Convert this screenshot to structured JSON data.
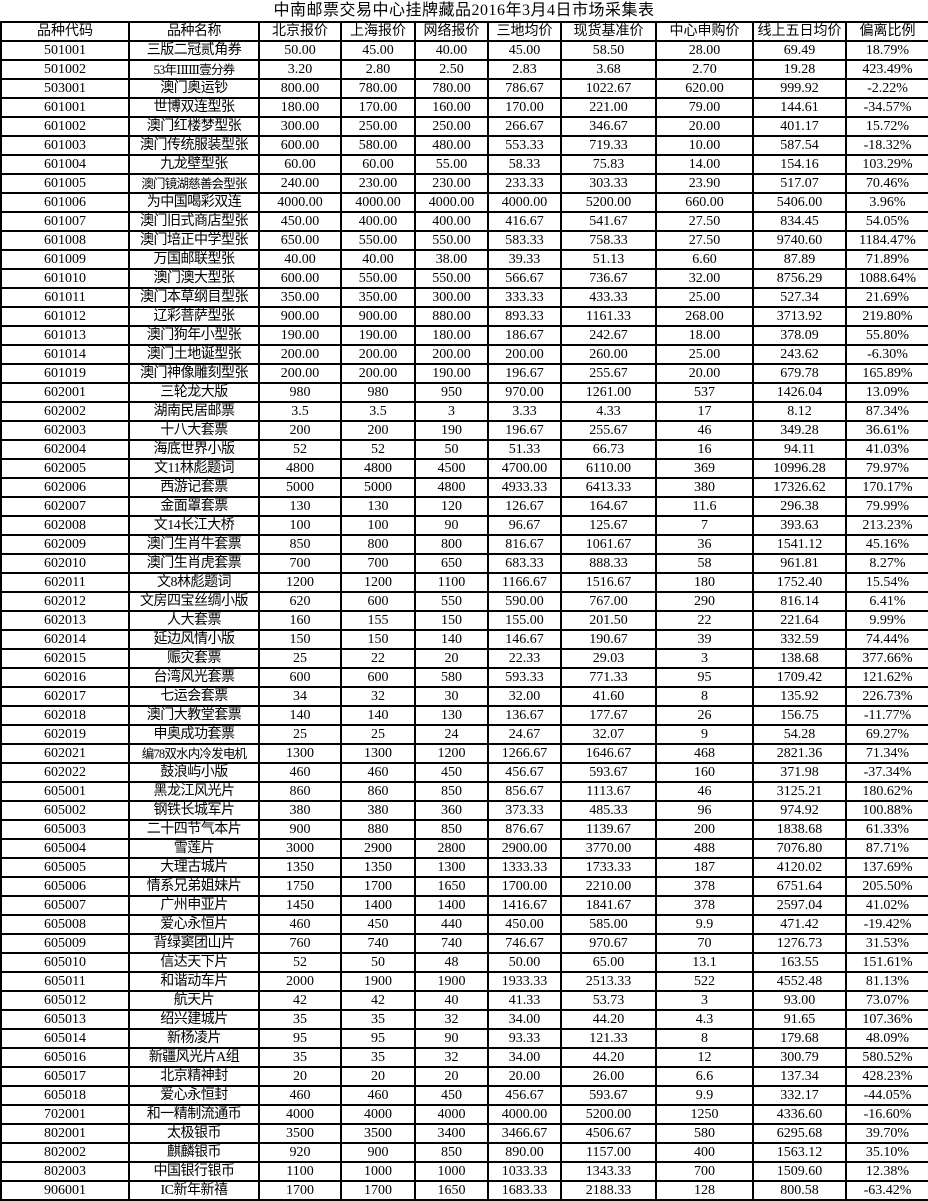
{
  "title": "中南邮票交易中心挂牌藏品2016年3月4日市场采集表",
  "table": {
    "columns": [
      "品种代码",
      "品种名称",
      "北京报价",
      "上海报价",
      "网络报价",
      "三地均价",
      "现货基准价",
      "中心申购价",
      "线上五日均价",
      "偏离比例"
    ],
    "rows": [
      [
        "501001",
        "三版二冠贰角券",
        "50.00",
        "45.00",
        "40.00",
        "45.00",
        "58.50",
        "28.00",
        "69.49",
        "18.79%"
      ],
      [
        "501002",
        "53年ⅠⅡⅢ壹分券",
        "3.20",
        "2.80",
        "2.50",
        "2.83",
        "3.68",
        "2.70",
        "19.28",
        "423.49%"
      ],
      [
        "503001",
        "澳门奥运钞",
        "800.00",
        "780.00",
        "780.00",
        "786.67",
        "1022.67",
        "620.00",
        "999.92",
        "-2.22%"
      ],
      [
        "601001",
        "世博双连型张",
        "180.00",
        "170.00",
        "160.00",
        "170.00",
        "221.00",
        "79.00",
        "144.61",
        "-34.57%"
      ],
      [
        "601002",
        "澳门红楼梦型张",
        "300.00",
        "250.00",
        "250.00",
        "266.67",
        "346.67",
        "20.00",
        "401.17",
        "15.72%"
      ],
      [
        "601003",
        "澳门传统服装型张",
        "600.00",
        "580.00",
        "480.00",
        "553.33",
        "719.33",
        "10.00",
        "587.54",
        "-18.32%"
      ],
      [
        "601004",
        "九龙壁型张",
        "60.00",
        "60.00",
        "55.00",
        "58.33",
        "75.83",
        "14.00",
        "154.16",
        "103.29%"
      ],
      [
        "601005",
        "澳门镜湖慈善会型张",
        "240.00",
        "230.00",
        "230.00",
        "233.33",
        "303.33",
        "23.90",
        "517.07",
        "70.46%"
      ],
      [
        "601006",
        "为中国喝彩双连",
        "4000.00",
        "4000.00",
        "4000.00",
        "4000.00",
        "5200.00",
        "660.00",
        "5406.00",
        "3.96%"
      ],
      [
        "601007",
        "澳门旧式商店型张",
        "450.00",
        "400.00",
        "400.00",
        "416.67",
        "541.67",
        "27.50",
        "834.45",
        "54.05%"
      ],
      [
        "601008",
        "澳门培正中学型张",
        "650.00",
        "550.00",
        "550.00",
        "583.33",
        "758.33",
        "27.50",
        "9740.60",
        "1184.47%"
      ],
      [
        "601009",
        "万国邮联型张",
        "40.00",
        "40.00",
        "38.00",
        "39.33",
        "51.13",
        "6.60",
        "87.89",
        "71.89%"
      ],
      [
        "601010",
        "澳门澳大型张",
        "600.00",
        "550.00",
        "550.00",
        "566.67",
        "736.67",
        "32.00",
        "8756.29",
        "1088.64%"
      ],
      [
        "601011",
        "澳门本草纲目型张",
        "350.00",
        "350.00",
        "300.00",
        "333.33",
        "433.33",
        "25.00",
        "527.34",
        "21.69%"
      ],
      [
        "601012",
        "辽彩菩萨型张",
        "900.00",
        "900.00",
        "880.00",
        "893.33",
        "1161.33",
        "268.00",
        "3713.92",
        "219.80%"
      ],
      [
        "601013",
        "澳门狗年小型张",
        "190.00",
        "190.00",
        "180.00",
        "186.67",
        "242.67",
        "18.00",
        "378.09",
        "55.80%"
      ],
      [
        "601014",
        "澳门土地诞型张",
        "200.00",
        "200.00",
        "200.00",
        "200.00",
        "260.00",
        "25.00",
        "243.62",
        "-6.30%"
      ],
      [
        "601019",
        "澳门神像雕刻型张",
        "200.00",
        "200.00",
        "190.00",
        "196.67",
        "255.67",
        "20.00",
        "679.78",
        "165.89%"
      ],
      [
        "602001",
        "三轮龙大版",
        "980",
        "980",
        "950",
        "970.00",
        "1261.00",
        "537",
        "1426.04",
        "13.09%"
      ],
      [
        "602002",
        "湖南民居邮票",
        "3.5",
        "3.5",
        "3",
        "3.33",
        "4.33",
        "17",
        "8.12",
        "87.34%"
      ],
      [
        "602003",
        "十八大套票",
        "200",
        "200",
        "190",
        "196.67",
        "255.67",
        "46",
        "349.28",
        "36.61%"
      ],
      [
        "602004",
        "海底世界小版",
        "52",
        "52",
        "50",
        "51.33",
        "66.73",
        "16",
        "94.11",
        "41.03%"
      ],
      [
        "602005",
        "文11林彪题词",
        "4800",
        "4800",
        "4500",
        "4700.00",
        "6110.00",
        "369",
        "10996.28",
        "79.97%"
      ],
      [
        "602006",
        "西游记套票",
        "5000",
        "5000",
        "4800",
        "4933.33",
        "6413.33",
        "380",
        "17326.62",
        "170.17%"
      ],
      [
        "602007",
        "金面罩套票",
        "130",
        "130",
        "120",
        "126.67",
        "164.67",
        "11.6",
        "296.38",
        "79.99%"
      ],
      [
        "602008",
        "文14长江大桥",
        "100",
        "100",
        "90",
        "96.67",
        "125.67",
        "7",
        "393.63",
        "213.23%"
      ],
      [
        "602009",
        "澳门生肖牛套票",
        "850",
        "800",
        "800",
        "816.67",
        "1061.67",
        "36",
        "1541.12",
        "45.16%"
      ],
      [
        "602010",
        "澳门生肖虎套票",
        "700",
        "700",
        "650",
        "683.33",
        "888.33",
        "58",
        "961.81",
        "8.27%"
      ],
      [
        "602011",
        "文8林彪题词",
        "1200",
        "1200",
        "1100",
        "1166.67",
        "1516.67",
        "180",
        "1752.40",
        "15.54%"
      ],
      [
        "602012",
        "文房四宝丝绸小版",
        "620",
        "600",
        "550",
        "590.00",
        "767.00",
        "290",
        "816.14",
        "6.41%"
      ],
      [
        "602013",
        "人大套票",
        "160",
        "155",
        "150",
        "155.00",
        "201.50",
        "22",
        "221.64",
        "9.99%"
      ],
      [
        "602014",
        "延边风情小版",
        "150",
        "150",
        "140",
        "146.67",
        "190.67",
        "39",
        "332.59",
        "74.44%"
      ],
      [
        "602015",
        "赈灾套票",
        "25",
        "22",
        "20",
        "22.33",
        "29.03",
        "3",
        "138.68",
        "377.66%"
      ],
      [
        "602016",
        "台湾风光套票",
        "600",
        "600",
        "580",
        "593.33",
        "771.33",
        "95",
        "1709.42",
        "121.62%"
      ],
      [
        "602017",
        "七运会套票",
        "34",
        "32",
        "30",
        "32.00",
        "41.60",
        "8",
        "135.92",
        "226.73%"
      ],
      [
        "602018",
        "澳门大教堂套票",
        "140",
        "140",
        "130",
        "136.67",
        "177.67",
        "26",
        "156.75",
        "-11.77%"
      ],
      [
        "602019",
        "申奥成功套票",
        "25",
        "25",
        "24",
        "24.67",
        "32.07",
        "9",
        "54.28",
        "69.27%"
      ],
      [
        "602021",
        "编78双水内冷发电机",
        "1300",
        "1300",
        "1200",
        "1266.67",
        "1646.67",
        "468",
        "2821.36",
        "71.34%"
      ],
      [
        "602022",
        "鼓浪屿小版",
        "460",
        "460",
        "450",
        "456.67",
        "593.67",
        "160",
        "371.98",
        "-37.34%"
      ],
      [
        "605001",
        "黑龙江风光片",
        "860",
        "860",
        "850",
        "856.67",
        "1113.67",
        "46",
        "3125.21",
        "180.62%"
      ],
      [
        "605002",
        "钢铁长城军片",
        "380",
        "380",
        "360",
        "373.33",
        "485.33",
        "96",
        "974.92",
        "100.88%"
      ],
      [
        "605003",
        "二十四节气本片",
        "900",
        "880",
        "850",
        "876.67",
        "1139.67",
        "200",
        "1838.68",
        "61.33%"
      ],
      [
        "605004",
        "雪莲片",
        "3000",
        "2900",
        "2800",
        "2900.00",
        "3770.00",
        "488",
        "7076.80",
        "87.71%"
      ],
      [
        "605005",
        "大理古城片",
        "1350",
        "1350",
        "1300",
        "1333.33",
        "1733.33",
        "187",
        "4120.02",
        "137.69%"
      ],
      [
        "605006",
        "情系兄弟姐妹片",
        "1750",
        "1700",
        "1650",
        "1700.00",
        "2210.00",
        "378",
        "6751.64",
        "205.50%"
      ],
      [
        "605007",
        "广州申亚片",
        "1450",
        "1400",
        "1400",
        "1416.67",
        "1841.67",
        "378",
        "2597.04",
        "41.02%"
      ],
      [
        "605008",
        "爱心永恒片",
        "460",
        "450",
        "440",
        "450.00",
        "585.00",
        "9.9",
        "471.42",
        "-19.42%"
      ],
      [
        "605009",
        "背绿窦团山片",
        "760",
        "740",
        "740",
        "746.67",
        "970.67",
        "70",
        "1276.73",
        "31.53%"
      ],
      [
        "605010",
        "信达天下片",
        "52",
        "50",
        "48",
        "50.00",
        "65.00",
        "13.1",
        "163.55",
        "151.61%"
      ],
      [
        "605011",
        "和谐动车片",
        "2000",
        "1900",
        "1900",
        "1933.33",
        "2513.33",
        "522",
        "4552.48",
        "81.13%"
      ],
      [
        "605012",
        "航天片",
        "42",
        "42",
        "40",
        "41.33",
        "53.73",
        "3",
        "93.00",
        "73.07%"
      ],
      [
        "605013",
        "绍兴建城片",
        "35",
        "35",
        "32",
        "34.00",
        "44.20",
        "4.3",
        "91.65",
        "107.36%"
      ],
      [
        "605014",
        "新杨凌片",
        "95",
        "95",
        "90",
        "93.33",
        "121.33",
        "8",
        "179.68",
        "48.09%"
      ],
      [
        "605016",
        "新疆风光片A组",
        "35",
        "35",
        "32",
        "34.00",
        "44.20",
        "12",
        "300.79",
        "580.52%"
      ],
      [
        "605017",
        "北京精神封",
        "20",
        "20",
        "20",
        "20.00",
        "26.00",
        "6.6",
        "137.34",
        "428.23%"
      ],
      [
        "605018",
        "爱心永恒封",
        "460",
        "460",
        "450",
        "456.67",
        "593.67",
        "9.9",
        "332.17",
        "-44.05%"
      ],
      [
        "702001",
        "和一精制流通币",
        "4000",
        "4000",
        "4000",
        "4000.00",
        "5200.00",
        "1250",
        "4336.60",
        "-16.60%"
      ],
      [
        "802001",
        "太极银币",
        "3500",
        "3500",
        "3400",
        "3466.67",
        "4506.67",
        "580",
        "6295.68",
        "39.70%"
      ],
      [
        "802002",
        "麒麟银币",
        "920",
        "900",
        "850",
        "890.00",
        "1157.00",
        "400",
        "1563.12",
        "35.10%"
      ],
      [
        "802003",
        "中国银行银币",
        "1100",
        "1000",
        "1000",
        "1033.33",
        "1343.33",
        "700",
        "1509.60",
        "12.38%"
      ],
      [
        "906001",
        "IC新年新禧",
        "1700",
        "1700",
        "1650",
        "1683.33",
        "2188.33",
        "128",
        "800.58",
        "-63.42%"
      ]
    ]
  }
}
